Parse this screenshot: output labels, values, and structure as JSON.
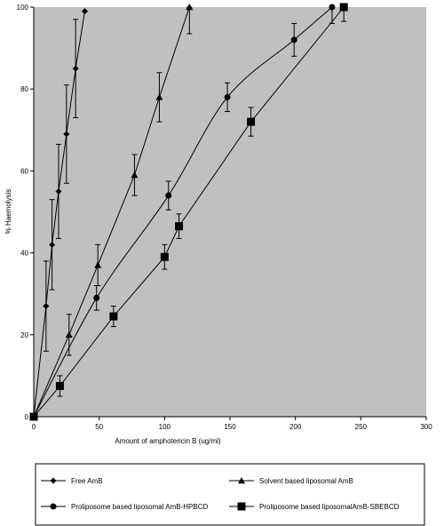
{
  "chart_data": {
    "type": "line",
    "xlabel": "Amount of amphotericin B (ug/ml)",
    "ylabel": "% Haemolysis",
    "xlim": [
      0,
      300
    ],
    "ylim": [
      0,
      100
    ],
    "x_ticks": [
      "0",
      "50",
      "100",
      "150",
      "200",
      "250",
      "300"
    ],
    "y_ticks": [
      "0",
      "20",
      "40",
      "60",
      "80",
      "100"
    ],
    "grid": false,
    "plot_background": "#c0c0c0",
    "legend_position": "bottom",
    "series": [
      {
        "name": "Free AmB",
        "marker": "diamond",
        "smooth": false,
        "points": [
          {
            "x": 0,
            "y": 0,
            "err": 0
          },
          {
            "x": 9.4,
            "y": 27,
            "err": 11
          },
          {
            "x": 14,
            "y": 42,
            "err": 11
          },
          {
            "x": 19,
            "y": 55,
            "err": 11.5
          },
          {
            "x": 25,
            "y": 69,
            "err": 12
          },
          {
            "x": 32,
            "y": 85,
            "err": 12
          },
          {
            "x": 39,
            "y": 99,
            "err": 0
          }
        ]
      },
      {
        "name": "Solvent based liposomal AmB",
        "marker": "triangle",
        "smooth": false,
        "points": [
          {
            "x": 0,
            "y": 0,
            "err": 0
          },
          {
            "x": 27,
            "y": 20,
            "err": 5
          },
          {
            "x": 49,
            "y": 37,
            "err": 5
          },
          {
            "x": 77,
            "y": 59,
            "err": 5
          },
          {
            "x": 96,
            "y": 78,
            "err": 6
          },
          {
            "x": 119,
            "y": 100,
            "err": 6.5
          }
        ]
      },
      {
        "name": "Proliposome based liposomal AmB-HPBCD",
        "marker": "circle",
        "smooth": true,
        "points": [
          {
            "x": 0,
            "y": 0,
            "err": 0
          },
          {
            "x": 48,
            "y": 29,
            "err": 3
          },
          {
            "x": 103,
            "y": 54,
            "err": 3.5
          },
          {
            "x": 148,
            "y": 78,
            "err": 3.5
          },
          {
            "x": 199,
            "y": 92,
            "err": 4
          },
          {
            "x": 228,
            "y": 100,
            "err": 4
          }
        ]
      },
      {
        "name": "Proliposome based liposomalAmB-SBEBCD",
        "marker": "square",
        "smooth": false,
        "points": [
          {
            "x": 0,
            "y": 0,
            "err": 0
          },
          {
            "x": 20,
            "y": 7.5,
            "err": 2.5
          },
          {
            "x": 61,
            "y": 24.5,
            "err": 2.5
          },
          {
            "x": 100,
            "y": 39,
            "err": 3
          },
          {
            "x": 111,
            "y": 46.5,
            "err": 3
          },
          {
            "x": 166,
            "y": 72,
            "err": 3.5
          },
          {
            "x": 237,
            "y": 100,
            "err": 3.5
          }
        ]
      }
    ]
  }
}
